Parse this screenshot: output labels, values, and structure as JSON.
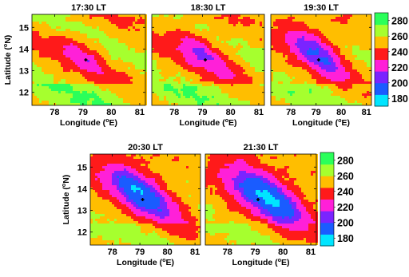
{
  "chart_data": {
    "type": "heatmap",
    "x_range": [
      77.2,
      81.2
    ],
    "y_range": [
      11.4,
      15.6
    ],
    "x_ticks": [
      78,
      79,
      80,
      81
    ],
    "y_ticks": [
      12,
      13,
      14,
      15
    ],
    "xlabel": "Longitude (°E)",
    "ylabel": "Latitude (°N)",
    "xlabel_main": "Longitude (",
    "xlabel_sup": "o",
    "xlabel_tail": "E)",
    "ylabel_main": "Latitude (",
    "ylabel_sup": "o",
    "ylabel_tail": "N)",
    "marker": {
      "lon": 79.1,
      "lat": 13.5
    },
    "colorbar": {
      "range": [
        170,
        290
      ],
      "tick_labels": [
        "280",
        "260",
        "240",
        "220",
        "200",
        "180"
      ],
      "tick_values": [
        280,
        260,
        240,
        220,
        200,
        180
      ],
      "colors": [
        "#00e5ff",
        "#1a5cff",
        "#7a24ff",
        "#ff20d8",
        "#ff1a1a",
        "#ffbe00",
        "#a6ff2e",
        "#2bff5a"
      ]
    },
    "panels": [
      {
        "title": "17:30 LT",
        "cold_center": [
          79.0,
          13.7
        ],
        "cold_strength": 0.15
      },
      {
        "title": "18:30 LT",
        "cold_center": [
          79.0,
          13.8
        ],
        "cold_strength": 0.35
      },
      {
        "title": "19:30 LT",
        "cold_center": [
          79.0,
          13.9
        ],
        "cold_strength": 0.6
      },
      {
        "title": "20:30 LT",
        "cold_center": [
          79.0,
          13.9
        ],
        "cold_strength": 0.85
      },
      {
        "title": "21:30 LT",
        "cold_center": [
          79.4,
          13.7
        ],
        "cold_strength": 1.0
      }
    ]
  }
}
